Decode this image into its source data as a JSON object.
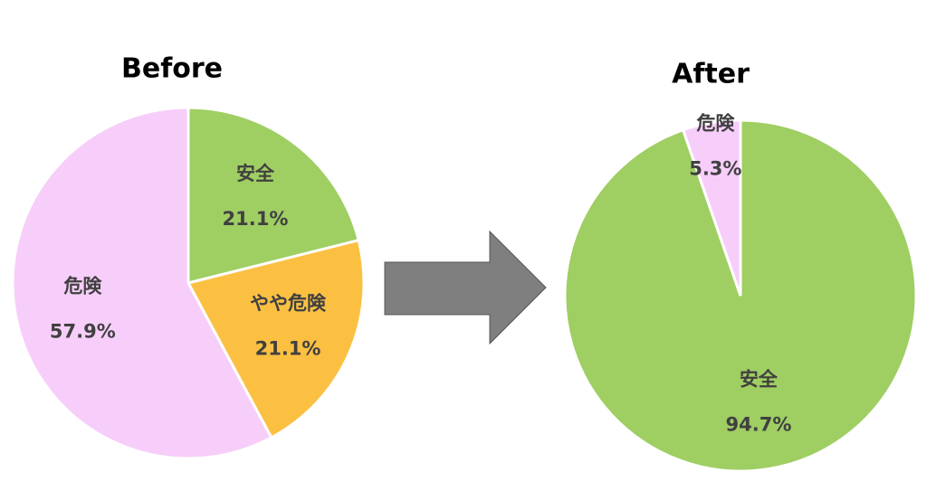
{
  "chart_data": [
    {
      "type": "pie",
      "title": "Before",
      "categories": [
        "安全",
        "やや危険",
        "危険"
      ],
      "values": [
        21.1,
        21.1,
        57.9
      ],
      "value_labels": [
        "21.1%",
        "21.1%",
        "57.9%"
      ],
      "colors": [
        "#9fce63",
        "#fbc042",
        "#f7cdfa"
      ]
    },
    {
      "type": "pie",
      "title": "After",
      "categories": [
        "安全",
        "危険"
      ],
      "values": [
        94.7,
        5.3
      ],
      "value_labels": [
        "94.7%",
        "5.3%"
      ],
      "colors": [
        "#9fce63",
        "#f7cdfa"
      ]
    }
  ]
}
